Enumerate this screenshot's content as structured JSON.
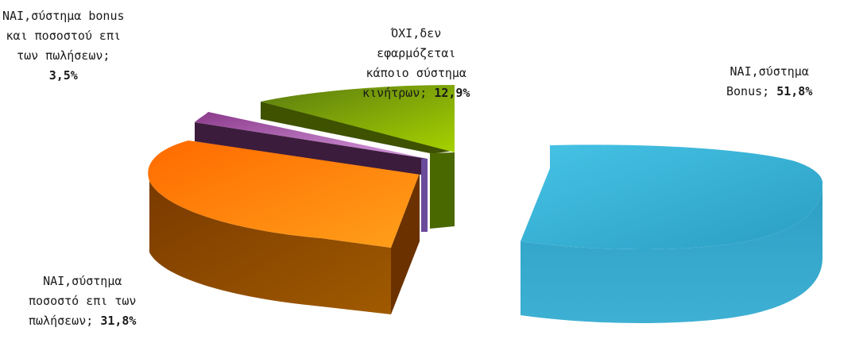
{
  "chart_data": {
    "type": "pie",
    "style": "3d-exploded",
    "title": "",
    "slices": [
      {
        "label_lines": [
          "ΝΑΙ,σύστημα",
          "Bonus;"
        ],
        "value": 51.8,
        "value_label": "51,8%",
        "color": "#33b5d5"
      },
      {
        "label_lines": [
          "ΝΑΙ,σύστημα",
          "ποσοστό επι των",
          "πωλήσεων;"
        ],
        "value": 31.8,
        "value_label": "31,8%",
        "color": "#ff8a10"
      },
      {
        "label_lines": [
          "ΝΑΙ,σύστημα bonus",
          "και ποσοστού επι",
          "των πωλήσεων;"
        ],
        "value": 3.5,
        "value_label": "3,5%",
        "color": "#a060a8"
      },
      {
        "label_lines": [
          "ΌΧΙ,δεν",
          "εφαρμόζεται",
          "κάποιο σύστημα",
          "κινήτρων;"
        ],
        "value": 12.9,
        "value_label": "12,9%",
        "color": "#8cb010"
      }
    ]
  }
}
